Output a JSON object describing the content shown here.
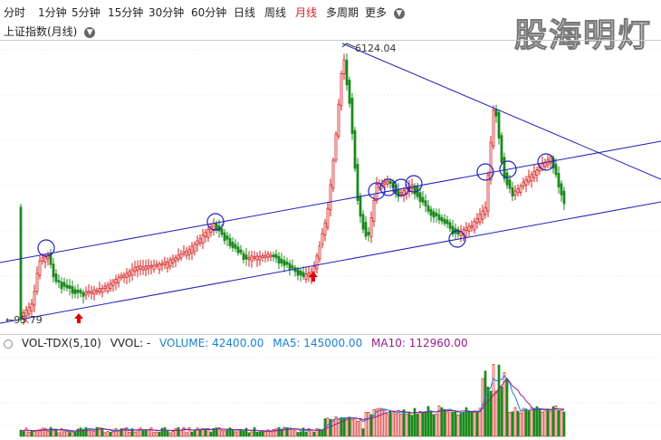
{
  "toolbar": {
    "items": [
      "分时",
      "1分钟",
      "5分钟",
      "15分钟",
      "30分钟",
      "60分钟",
      "日线",
      "周线",
      "月线",
      "多周期",
      "更多"
    ],
    "active_index": 8,
    "more_icon": "chevron-down-icon"
  },
  "chart": {
    "title": "上证指数(月线)",
    "high_label": "6124.04",
    "low_label": "95.79",
    "colors": {
      "up": "#d41e1e",
      "down": "#1a8a1a",
      "trend": "#1f1fbf",
      "arrow": "#e00000"
    }
  },
  "watermark": "股海明灯",
  "volume": {
    "indicator": "VOL-TDX(5,10)",
    "vvol": "VVOL: -",
    "volume_label": "VOLUME: 42400.00",
    "ma5_label": "MA5: 145000.00",
    "ma10_label": "MA10: 112960.00",
    "colors": {
      "volume": "#1a7fd4",
      "ma5": "#1a7fd4",
      "ma10": "#9a1a8a"
    }
  }
}
